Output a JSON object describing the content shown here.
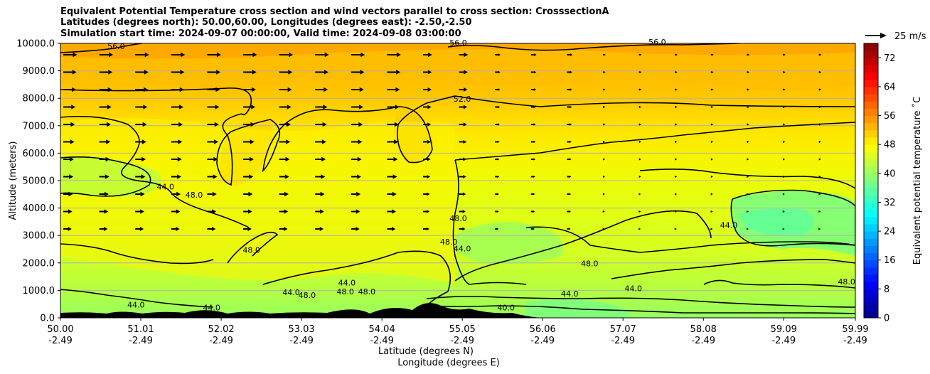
{
  "title": {
    "line1": "Equivalent Potential Temperature cross section and wind vectors parallel to cross section: CrosssectionA",
    "line2": "Latitudes (degrees north): 50.00,60.00, Longitudes (degrees east): -2.50,-2.50",
    "line3": "Simulation start time: 2024-09-07 00:00:00, Valid time: 2024-09-08 03:00:00"
  },
  "chart_data": {
    "type": "heatmap",
    "ylabel": "Altitude (meters)",
    "xlabel_line1": "Latitude (degrees N)",
    "xlabel_line2": "Longitude (degrees E)",
    "x_range": [
      50.0,
      59.99
    ],
    "y_range": [
      0,
      10000
    ],
    "x_ticks": [
      {
        "lat": "50.00",
        "lon": "-2.49",
        "value": 50.0
      },
      {
        "lat": "51.01",
        "lon": "-2.49",
        "value": 51.01
      },
      {
        "lat": "52.02",
        "lon": "-2.49",
        "value": 52.02
      },
      {
        "lat": "53.03",
        "lon": "-2.49",
        "value": 53.03
      },
      {
        "lat": "54.04",
        "lon": "-2.49",
        "value": 54.04
      },
      {
        "lat": "55.05",
        "lon": "-2.49",
        "value": 55.05
      },
      {
        "lat": "56.06",
        "lon": "-2.49",
        "value": 56.06
      },
      {
        "lat": "57.07",
        "lon": "-2.49",
        "value": 57.07
      },
      {
        "lat": "58.08",
        "lon": "-2.49",
        "value": 58.08
      },
      {
        "lat": "59.09",
        "lon": "-2.49",
        "value": 59.09
      },
      {
        "lat": "59.99",
        "lon": "-2.49",
        "value": 59.99
      }
    ],
    "y_ticks": [
      {
        "label": "0.0",
        "value": 0
      },
      {
        "label": "1000.0",
        "value": 1000
      },
      {
        "label": "2000.0",
        "value": 2000
      },
      {
        "label": "3000.0",
        "value": 3000
      },
      {
        "label": "4000.0",
        "value": 4000
      },
      {
        "label": "5000.0",
        "value": 5000
      },
      {
        "label": "6000.0",
        "value": 6000
      },
      {
        "label": "7000.0",
        "value": 7000
      },
      {
        "label": "8000.0",
        "value": 8000
      },
      {
        "label": "9000.0",
        "value": 9000
      },
      {
        "label": "10000.0",
        "value": 10000
      }
    ],
    "grid": "horizontal",
    "colorbar": {
      "label": "Equivalent potential temperature $^\\circ$C",
      "label_display": "Equivalent potential temperature ˚C",
      "range": [
        0,
        76
      ],
      "ticks": [
        0,
        8,
        16,
        24,
        32,
        40,
        48,
        56,
        64,
        72
      ],
      "tick_labels": [
        "0",
        "8",
        "16",
        "24",
        "32",
        "40",
        "48",
        "56",
        "64",
        "72"
      ],
      "colormap": "jet"
    },
    "quiver_key": {
      "label": "25 m/s",
      "value": 25
    },
    "contour_labels": [
      {
        "text": "56.0",
        "lat": 50.7,
        "alt": 9820
      },
      {
        "text": "56.0",
        "lat": 55.0,
        "alt": 9950
      },
      {
        "text": "56.0",
        "lat": 57.5,
        "alt": 9980
      },
      {
        "text": "52.0",
        "lat": 55.05,
        "alt": 7900
      },
      {
        "text": "44.0",
        "lat": 51.32,
        "alt": 4700
      },
      {
        "text": "48.0",
        "lat": 51.68,
        "alt": 4400
      },
      {
        "text": "48.0",
        "lat": 52.4,
        "alt": 2400
      },
      {
        "text": "48.0",
        "lat": 55.0,
        "alt": 3550
      },
      {
        "text": "48.0",
        "lat": 54.88,
        "alt": 2700
      },
      {
        "text": "44.0",
        "lat": 55.05,
        "alt": 2450
      },
      {
        "text": "48.0",
        "lat": 56.65,
        "alt": 1900
      },
      {
        "text": "44.0",
        "lat": 57.2,
        "alt": 1000
      },
      {
        "text": "44.0",
        "lat": 58.4,
        "alt": 3300
      },
      {
        "text": "48.0",
        "lat": 59.88,
        "alt": 1250
      },
      {
        "text": "44.0",
        "lat": 53.6,
        "alt": 1200
      },
      {
        "text": "48.0",
        "lat": 53.58,
        "alt": 880
      },
      {
        "text": "48.0",
        "lat": 53.85,
        "alt": 880
      },
      {
        "text": "44.0",
        "lat": 52.9,
        "alt": 850
      },
      {
        "text": "48.0",
        "lat": 53.1,
        "alt": 750
      },
      {
        "text": "44.0",
        "lat": 50.95,
        "alt": 400
      },
      {
        "text": "44.0",
        "lat": 51.9,
        "alt": 300
      },
      {
        "text": "40.0",
        "lat": 55.6,
        "alt": 300
      },
      {
        "text": "44.0",
        "lat": 56.4,
        "alt": 800
      }
    ],
    "wind_vectors_description": "arrows pointing toward increasing latitude; longest near lat 51-53.5 at altitude 5000-10000 m"
  }
}
